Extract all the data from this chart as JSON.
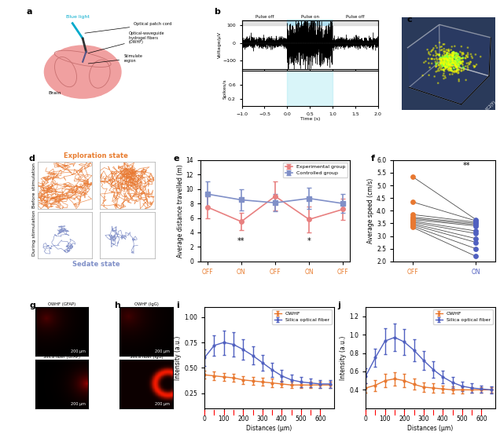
{
  "panel_e": {
    "x_labels": [
      "OFF",
      "ON",
      "OFF",
      "ON",
      "OFF"
    ],
    "exp_y": [
      7.5,
      5.5,
      9.0,
      5.8,
      7.2
    ],
    "exp_err": [
      1.5,
      1.2,
      2.0,
      1.8,
      1.5
    ],
    "ctrl_y": [
      9.3,
      8.5,
      8.1,
      8.7,
      8.0
    ],
    "ctrl_err": [
      1.8,
      1.5,
      1.2,
      1.5,
      1.3
    ],
    "ylabel": "Average distance travelled (m)",
    "ylim": [
      0,
      14
    ],
    "sig_labels": [
      [
        "**",
        1
      ],
      [
        "*",
        3
      ]
    ],
    "exp_color": "#e88080",
    "ctrl_color": "#8090c8"
  },
  "panel_f": {
    "off_orange": [
      5.35,
      4.35,
      3.85,
      3.75,
      3.7,
      3.65,
      3.6,
      3.55,
      3.5,
      3.45,
      3.4,
      3.35
    ],
    "on_blue": [
      3.65,
      3.6,
      3.55,
      3.5,
      3.45,
      3.4,
      3.2,
      3.1,
      2.9,
      2.75,
      2.5,
      2.2
    ],
    "ylabel": "Average speed (cm/s)",
    "ylim": [
      2.0,
      6.0
    ],
    "sig_label": "**",
    "off_color": "#e87830",
    "on_color": "#5060c0"
  },
  "panel_i": {
    "owhf_y": [
      0.43,
      0.42,
      0.41,
      0.4,
      0.38,
      0.37,
      0.36,
      0.35,
      0.34,
      0.33,
      0.33,
      0.33,
      0.33,
      0.33
    ],
    "silica_y": [
      0.6,
      0.72,
      0.75,
      0.73,
      0.68,
      0.62,
      0.55,
      0.48,
      0.42,
      0.38,
      0.36,
      0.35,
      0.34,
      0.34
    ],
    "x": [
      0,
      50,
      100,
      150,
      200,
      250,
      300,
      350,
      400,
      450,
      500,
      550,
      600,
      650
    ],
    "owhf_err": [
      0.04,
      0.04,
      0.04,
      0.04,
      0.04,
      0.04,
      0.04,
      0.04,
      0.03,
      0.03,
      0.03,
      0.03,
      0.03,
      0.03
    ],
    "silica_err": [
      0.08,
      0.1,
      0.12,
      0.12,
      0.1,
      0.09,
      0.08,
      0.07,
      0.06,
      0.05,
      0.05,
      0.04,
      0.04,
      0.04
    ],
    "xlabel": "Distances (μm)",
    "ylabel": "Intensity (a.u.)",
    "ylim": [
      0.1,
      1.1
    ],
    "yticks": [
      0.25,
      0.5,
      0.75,
      1.0
    ],
    "owhf_color": "#e87830",
    "silica_color": "#5060c0"
  },
  "panel_j": {
    "owhf_y": [
      0.42,
      0.45,
      0.5,
      0.52,
      0.5,
      0.46,
      0.43,
      0.42,
      0.41,
      0.4,
      0.4,
      0.4,
      0.4,
      0.4
    ],
    "silica_y": [
      0.55,
      0.75,
      0.93,
      0.97,
      0.92,
      0.83,
      0.72,
      0.62,
      0.54,
      0.48,
      0.44,
      0.42,
      0.41,
      0.4
    ],
    "x": [
      0,
      50,
      100,
      150,
      200,
      250,
      300,
      350,
      400,
      450,
      500,
      550,
      600,
      650
    ],
    "owhf_err": [
      0.05,
      0.06,
      0.07,
      0.07,
      0.07,
      0.06,
      0.05,
      0.05,
      0.04,
      0.04,
      0.04,
      0.03,
      0.03,
      0.03
    ],
    "silica_err": [
      0.08,
      0.1,
      0.14,
      0.15,
      0.14,
      0.12,
      0.1,
      0.09,
      0.07,
      0.06,
      0.05,
      0.05,
      0.04,
      0.04
    ],
    "xlabel": "Distances (μm)",
    "ylabel": "Intensity (a.u.)",
    "ylim": [
      0.2,
      1.3
    ],
    "yticks": [
      0.4,
      0.6,
      0.8,
      1.0,
      1.2
    ],
    "owhf_color": "#e87830",
    "silica_color": "#5060c0"
  },
  "label_color": "#e87d30",
  "bg_color": "#ffffff"
}
